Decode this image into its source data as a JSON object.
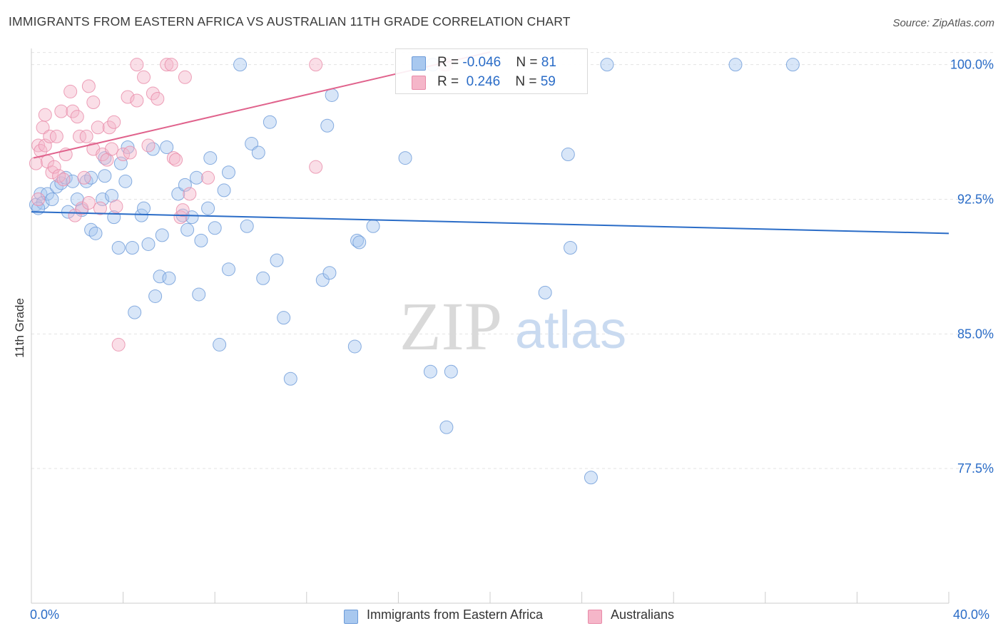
{
  "title": "IMMIGRANTS FROM EASTERN AFRICA VS AUSTRALIAN 11TH GRADE CORRELATION CHART",
  "source": "Source: ZipAtlas.com",
  "watermark": {
    "zip": "ZIP",
    "atlas": "atlas"
  },
  "legend": {
    "rows": [
      {
        "r_label": "R = ",
        "r_value": "-0.046",
        "n_label": "N = ",
        "n_value": "81",
        "color": "#a8c8ef"
      },
      {
        "r_label": "R = ",
        "r_value": " 0.246",
        "n_label": "N = ",
        "n_value": "59",
        "color": "#f5b6c9"
      }
    ]
  },
  "bottom_legend": [
    {
      "label": "Immigrants from Eastern Africa",
      "color": "#a8c8ef"
    },
    {
      "label": "Australians",
      "color": "#f5b6c9"
    }
  ],
  "colors": {
    "blue_fill": "#a8c8ef",
    "blue_stroke": "#6b9ad8",
    "blue_line": "#2a6cc7",
    "pink_fill": "#f5b6c9",
    "pink_stroke": "#e88aa8",
    "pink_line": "#e0628c",
    "tick_text": "#2a6cc7",
    "grid": "#e3e3e3"
  },
  "chart_data": {
    "type": "scatter",
    "title": "IMMIGRANTS FROM EASTERN AFRICA VS AUSTRALIAN 11TH GRADE CORRELATION CHART",
    "xlabel": "",
    "ylabel": "11th Grade",
    "xlim": [
      0,
      40
    ],
    "ylim": [
      70.0,
      100.9
    ],
    "x_tick_labels": [
      "0.0%",
      "40.0%"
    ],
    "y_ticks": [
      77.5,
      85.0,
      92.5,
      100.0
    ],
    "y_tick_labels": [
      "77.5%",
      "85.0%",
      "92.5%",
      "100.0%"
    ],
    "grid": true,
    "legend_position": "top-center",
    "series": [
      {
        "name": "Immigrants from Eastern Africa",
        "color": "#a8c8ef",
        "trend": {
          "x": [
            0,
            40
          ],
          "y": [
            91.8,
            90.6
          ]
        },
        "points": [
          [
            0.2,
            92.2
          ],
          [
            0.4,
            92.8
          ],
          [
            0.5,
            92.3
          ],
          [
            0.7,
            92.8
          ],
          [
            0.9,
            92.5
          ],
          [
            1.1,
            93.2
          ],
          [
            1.3,
            93.4
          ],
          [
            1.5,
            93.7
          ],
          [
            1.6,
            91.8
          ],
          [
            1.8,
            93.5
          ],
          [
            2.0,
            92.5
          ],
          [
            2.2,
            91.9
          ],
          [
            2.4,
            93.5
          ],
          [
            2.6,
            93.7
          ],
          [
            2.6,
            90.8
          ],
          [
            2.8,
            90.6
          ],
          [
            3.1,
            92.5
          ],
          [
            3.2,
            93.8
          ],
          [
            3.2,
            94.8
          ],
          [
            3.5,
            92.7
          ],
          [
            3.6,
            91.5
          ],
          [
            3.8,
            89.8
          ],
          [
            3.9,
            94.5
          ],
          [
            4.1,
            93.5
          ],
          [
            4.2,
            95.4
          ],
          [
            4.4,
            89.8
          ],
          [
            4.5,
            86.2
          ],
          [
            4.8,
            91.6
          ],
          [
            4.9,
            92.0
          ],
          [
            5.1,
            90.0
          ],
          [
            5.3,
            95.3
          ],
          [
            5.4,
            87.1
          ],
          [
            5.6,
            88.2
          ],
          [
            5.7,
            90.5
          ],
          [
            5.9,
            95.4
          ],
          [
            6.0,
            88.1
          ],
          [
            6.4,
            92.8
          ],
          [
            6.6,
            91.6
          ],
          [
            6.7,
            93.3
          ],
          [
            6.8,
            90.8
          ],
          [
            7.0,
            91.5
          ],
          [
            7.2,
            93.7
          ],
          [
            7.3,
            87.2
          ],
          [
            7.4,
            90.2
          ],
          [
            7.7,
            92.0
          ],
          [
            7.8,
            94.8
          ],
          [
            8.0,
            90.9
          ],
          [
            8.2,
            84.4
          ],
          [
            8.4,
            93.0
          ],
          [
            8.6,
            94.0
          ],
          [
            8.6,
            88.6
          ],
          [
            9.1,
            100.0
          ],
          [
            9.4,
            91.0
          ],
          [
            9.6,
            95.6
          ],
          [
            9.9,
            95.1
          ],
          [
            10.1,
            88.1
          ],
          [
            10.4,
            96.8
          ],
          [
            10.7,
            89.1
          ],
          [
            11.0,
            85.9
          ],
          [
            11.3,
            82.5
          ],
          [
            12.7,
            88.0
          ],
          [
            12.9,
            96.6
          ],
          [
            13.0,
            88.4
          ],
          [
            13.1,
            98.3
          ],
          [
            14.1,
            84.3
          ],
          [
            14.2,
            90.2
          ],
          [
            14.3,
            90.1
          ],
          [
            14.9,
            91.0
          ],
          [
            16.3,
            94.8
          ],
          [
            17.4,
            82.9
          ],
          [
            17.5,
            100.0
          ],
          [
            18.1,
            79.8
          ],
          [
            18.3,
            82.9
          ],
          [
            22.4,
            87.3
          ],
          [
            23.4,
            95.0
          ],
          [
            23.5,
            89.8
          ],
          [
            24.4,
            77.0
          ],
          [
            25.1,
            100.0
          ],
          [
            30.7,
            100.0
          ],
          [
            33.2,
            100.0
          ],
          [
            0.3,
            92.0
          ]
        ]
      },
      {
        "name": "Australians",
        "color": "#f5b6c9",
        "trend": {
          "x": [
            0.1,
            20.0
          ],
          "y": [
            94.8,
            100.7
          ]
        },
        "points": [
          [
            0.2,
            94.5
          ],
          [
            0.3,
            95.5
          ],
          [
            0.4,
            95.2
          ],
          [
            0.5,
            96.5
          ],
          [
            0.6,
            95.5
          ],
          [
            0.6,
            97.2
          ],
          [
            0.7,
            94.6
          ],
          [
            0.8,
            96.0
          ],
          [
            0.9,
            94.0
          ],
          [
            1.0,
            94.3
          ],
          [
            1.1,
            96.0
          ],
          [
            1.2,
            93.8
          ],
          [
            1.3,
            97.4
          ],
          [
            1.4,
            93.6
          ],
          [
            1.5,
            95.0
          ],
          [
            1.7,
            98.5
          ],
          [
            1.8,
            97.4
          ],
          [
            1.9,
            91.6
          ],
          [
            2.0,
            97.1
          ],
          [
            2.1,
            96.0
          ],
          [
            2.2,
            92.0
          ],
          [
            2.3,
            93.7
          ],
          [
            2.4,
            96.0
          ],
          [
            2.5,
            92.3
          ],
          [
            2.5,
            98.8
          ],
          [
            2.7,
            95.3
          ],
          [
            2.7,
            97.9
          ],
          [
            2.9,
            96.5
          ],
          [
            3.0,
            92.0
          ],
          [
            3.1,
            95.0
          ],
          [
            3.3,
            94.7
          ],
          [
            3.4,
            96.5
          ],
          [
            3.5,
            95.3
          ],
          [
            3.6,
            96.8
          ],
          [
            3.7,
            92.1
          ],
          [
            3.8,
            84.4
          ],
          [
            4.0,
            95.0
          ],
          [
            4.2,
            98.2
          ],
          [
            4.3,
            95.1
          ],
          [
            4.6,
            98.0
          ],
          [
            4.6,
            100.0
          ],
          [
            4.9,
            99.3
          ],
          [
            5.1,
            95.5
          ],
          [
            5.3,
            98.4
          ],
          [
            5.5,
            98.1
          ],
          [
            5.9,
            100.0
          ],
          [
            6.1,
            100.0
          ],
          [
            6.2,
            94.8
          ],
          [
            6.3,
            94.7
          ],
          [
            6.5,
            91.5
          ],
          [
            6.6,
            91.9
          ],
          [
            6.7,
            99.3
          ],
          [
            6.9,
            92.8
          ],
          [
            7.7,
            93.7
          ],
          [
            12.4,
            94.3
          ],
          [
            12.4,
            100.0
          ],
          [
            18.0,
            100.0
          ],
          [
            18.1,
            100.0
          ],
          [
            0.3,
            92.5
          ]
        ]
      }
    ]
  }
}
